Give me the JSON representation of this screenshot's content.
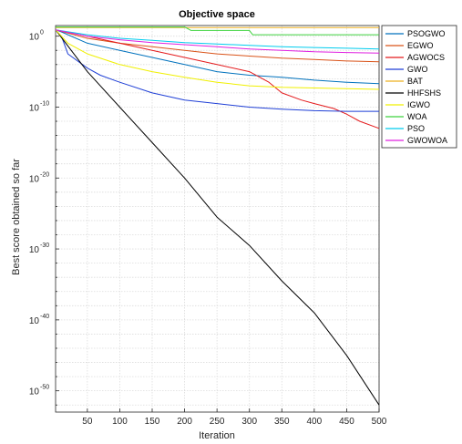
{
  "chart_data": {
    "type": "line",
    "title": "Objective space",
    "xlabel": "Iteration",
    "ylabel": "Best score obtained so far",
    "xlim": [
      1,
      500
    ],
    "ylim_log10": [
      -53,
      1.5
    ],
    "yscale": "log",
    "grid": true,
    "legend_position": "right",
    "x_ticks": [
      50,
      100,
      150,
      200,
      250,
      300,
      350,
      400,
      450,
      500
    ],
    "y_ticks": [
      {
        "base": "10",
        "exp": "0",
        "log10": 0
      },
      {
        "base": "10",
        "exp": "-10",
        "log10": -10
      },
      {
        "base": "10",
        "exp": "-20",
        "log10": -20
      },
      {
        "base": "10",
        "exp": "-30",
        "log10": -30
      },
      {
        "base": "10",
        "exp": "-40",
        "log10": -40
      },
      {
        "base": "10",
        "exp": "-50",
        "log10": -50
      }
    ],
    "series": [
      {
        "name": "PSOGWO",
        "color": "#0072BD",
        "x": [
          1,
          10,
          50,
          100,
          150,
          200,
          250,
          300,
          350,
          400,
          450,
          500
        ],
        "log10_y": [
          0.9,
          0.6,
          -1.0,
          -2.0,
          -3.0,
          -4.0,
          -5.0,
          -5.5,
          -5.8,
          -6.2,
          -6.5,
          -6.7
        ]
      },
      {
        "name": "EGWO",
        "color": "#D95319",
        "x": [
          1,
          50,
          100,
          150,
          200,
          250,
          300,
          350,
          400,
          450,
          500
        ],
        "log10_y": [
          0.9,
          -0.3,
          -1.0,
          -1.5,
          -2.0,
          -2.5,
          -2.8,
          -3.1,
          -3.3,
          -3.5,
          -3.6
        ]
      },
      {
        "name": "AGWOCS",
        "color": "#E41A1C",
        "x": [
          1,
          50,
          100,
          150,
          200,
          250,
          300,
          330,
          350,
          380,
          400,
          430,
          450,
          470,
          500
        ],
        "log10_y": [
          0.9,
          0.0,
          -1.0,
          -2.0,
          -3.0,
          -4.0,
          -5.0,
          -6.5,
          -8.0,
          -9.0,
          -9.5,
          -10.2,
          -11.0,
          -12.0,
          -13.0
        ]
      },
      {
        "name": "GWO",
        "color": "#1F3FD6",
        "x": [
          1,
          10,
          20,
          50,
          70,
          100,
          150,
          200,
          250,
          300,
          350,
          400,
          450,
          500
        ],
        "log10_y": [
          0.9,
          0.0,
          -2.5,
          -4.5,
          -5.5,
          -6.5,
          -8.0,
          -9.0,
          -9.5,
          -10.0,
          -10.3,
          -10.5,
          -10.6,
          -10.6
        ]
      },
      {
        "name": "BAT",
        "color": "#EDB120",
        "x": [
          1,
          500
        ],
        "log10_y": [
          1.2,
          1.2
        ]
      },
      {
        "name": "HHFSHS",
        "color": "#000000",
        "x": [
          1,
          50,
          100,
          150,
          200,
          250,
          300,
          350,
          400,
          450,
          500
        ],
        "log10_y": [
          0.9,
          -5.0,
          -10.0,
          -15.0,
          -20.0,
          -25.5,
          -29.5,
          -34.5,
          -39.0,
          -45.0,
          -52.0
        ]
      },
      {
        "name": "IGWO",
        "color": "#F0F000",
        "x": [
          1,
          20,
          50,
          100,
          150,
          200,
          250,
          300,
          350,
          400,
          450,
          500
        ],
        "log10_y": [
          0.9,
          -1.0,
          -2.5,
          -4.0,
          -5.0,
          -5.8,
          -6.5,
          -7.0,
          -7.2,
          -7.3,
          -7.4,
          -7.5
        ]
      },
      {
        "name": "WOA",
        "color": "#3ED23E",
        "x": [
          1,
          50,
          100,
          150,
          200,
          210,
          300,
          305,
          400,
          450,
          500
        ],
        "log10_y": [
          1.3,
          1.3,
          1.3,
          1.3,
          1.3,
          0.8,
          0.8,
          0.2,
          0.2,
          0.2,
          0.2
        ]
      },
      {
        "name": "PSO",
        "color": "#00CCEE",
        "x": [
          1,
          50,
          100,
          150,
          200,
          250,
          300,
          350,
          400,
          450,
          500
        ],
        "log10_y": [
          0.9,
          0.2,
          -0.3,
          -0.6,
          -0.9,
          -1.1,
          -1.3,
          -1.5,
          -1.6,
          -1.7,
          -1.8
        ]
      },
      {
        "name": "GWOWOA",
        "color": "#E020E0",
        "x": [
          1,
          50,
          100,
          150,
          200,
          250,
          300,
          350,
          400,
          450,
          500
        ],
        "log10_y": [
          0.9,
          0.0,
          -0.5,
          -0.9,
          -1.2,
          -1.5,
          -1.8,
          -2.0,
          -2.2,
          -2.3,
          -2.4
        ]
      }
    ]
  }
}
